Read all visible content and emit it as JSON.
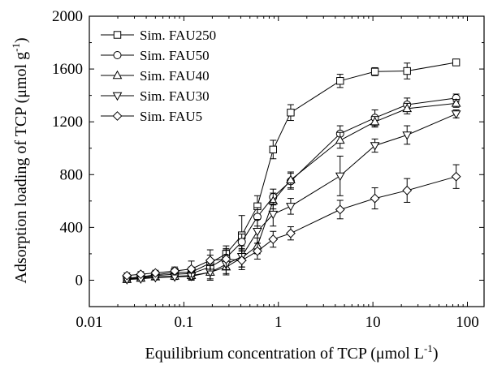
{
  "chart_data": {
    "type": "line",
    "xlabel": "Equilibrium concentration of TCP (μmol L",
    "xlabel_sup": "-1",
    "xlabel_end": ")",
    "ylabel": "Adsorption loading of TCP (μmol g",
    "ylabel_sup": "-1",
    "ylabel_end": ")",
    "xscale": "log",
    "xlim": [
      0.01,
      150
    ],
    "ylim": [
      -200,
      2000
    ],
    "xticks": [
      0.01,
      0.1,
      1,
      10,
      100
    ],
    "xtick_labels": [
      "0.01",
      "0.1",
      "1",
      "10",
      "100"
    ],
    "yticks": [
      0,
      400,
      800,
      1200,
      1600,
      2000
    ],
    "ytick_labels": [
      "0",
      "400",
      "800",
      "1200",
      "1600",
      "2000"
    ],
    "legend_position": "top-left",
    "grid": false,
    "series": [
      {
        "name": "Sim. FAU250",
        "marker": "square",
        "x": [
          0.025,
          0.035,
          0.05,
          0.08,
          0.12,
          0.19,
          0.28,
          0.41,
          0.6,
          0.88,
          1.35,
          4.5,
          10.5,
          23,
          76
        ],
        "y": [
          15,
          25,
          40,
          60,
          60,
          130,
          200,
          340,
          560,
          990,
          1270,
          1510,
          1580,
          1585,
          1650
        ],
        "err": [
          20,
          20,
          20,
          30,
          40,
          60,
          60,
          150,
          80,
          70,
          60,
          50,
          30,
          60,
          20
        ]
      },
      {
        "name": "Sim. FAU50",
        "marker": "circle",
        "x": [
          0.025,
          0.035,
          0.05,
          0.08,
          0.12,
          0.19,
          0.28,
          0.41,
          0.6,
          0.88,
          1.35,
          4.5,
          10.5,
          23,
          76
        ],
        "y": [
          10,
          20,
          35,
          45,
          50,
          100,
          170,
          290,
          480,
          630,
          750,
          1110,
          1230,
          1330,
          1380
        ],
        "err": [
          15,
          15,
          20,
          25,
          30,
          50,
          60,
          60,
          70,
          60,
          60,
          60,
          60,
          50,
          30
        ]
      },
      {
        "name": "Sim. FAU40",
        "marker": "triangle-up",
        "x": [
          0.025,
          0.035,
          0.05,
          0.08,
          0.12,
          0.19,
          0.28,
          0.41,
          0.6,
          0.88,
          1.35,
          4.5,
          10.5,
          23,
          76
        ],
        "y": [
          5,
          15,
          25,
          30,
          35,
          60,
          100,
          170,
          260,
          600,
          760,
          1060,
          1200,
          1300,
          1340
        ],
        "err": [
          15,
          15,
          20,
          20,
          30,
          60,
          60,
          70,
          60,
          60,
          60,
          60,
          40,
          40,
          30
        ]
      },
      {
        "name": "Sim. FAU30",
        "marker": "triangle-down",
        "x": [
          0.025,
          0.035,
          0.05,
          0.08,
          0.12,
          0.19,
          0.28,
          0.41,
          0.6,
          0.88,
          1.35,
          4.5,
          10.5,
          23,
          76
        ],
        "y": [
          5,
          10,
          20,
          25,
          30,
          60,
          120,
          180,
          370,
          500,
          560,
          790,
          1020,
          1100,
          1260
        ],
        "err": [
          15,
          15,
          15,
          20,
          30,
          50,
          70,
          80,
          90,
          90,
          60,
          150,
          50,
          70,
          30
        ]
      },
      {
        "name": "Sim. FAU5",
        "marker": "diamond",
        "x": [
          0.025,
          0.035,
          0.05,
          0.08,
          0.12,
          0.19,
          0.28,
          0.41,
          0.6,
          0.88,
          1.35,
          4.5,
          10.5,
          23,
          76
        ],
        "y": [
          35,
          45,
          55,
          70,
          85,
          150,
          160,
          150,
          220,
          310,
          355,
          535,
          620,
          680,
          785
        ],
        "err": [
          20,
          20,
          20,
          30,
          60,
          80,
          80,
          70,
          60,
          60,
          50,
          70,
          80,
          90,
          90
        ]
      }
    ]
  }
}
